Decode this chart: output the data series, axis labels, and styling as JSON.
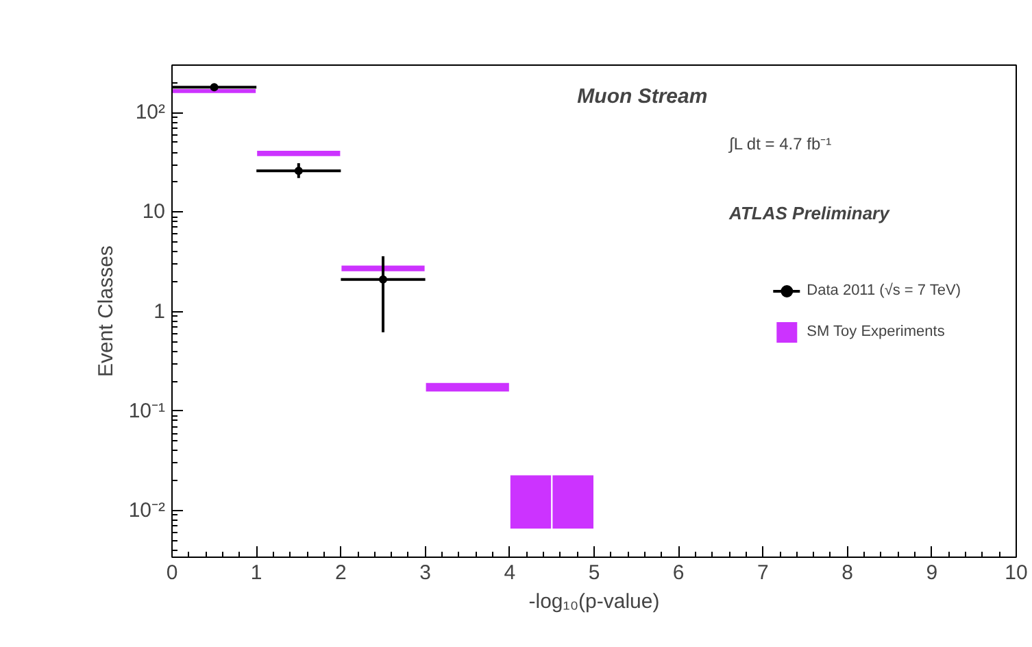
{
  "chart_data": {
    "type": "scatter",
    "xlabel": "-log₁₀(p-value)",
    "ylabel": "Event Classes",
    "annotations": [
      "Muon Stream",
      "∫L dt = 4.7 fb⁻¹",
      "ATLAS Preliminary"
    ],
    "series": [
      {
        "name": "SM Toy Experiments",
        "type": "histogram",
        "color": "#cc33ff",
        "bins": [
          0,
          1,
          2,
          3,
          4,
          4.5,
          5
        ],
        "base": [
          155,
          36,
          2.5,
          0.155,
          0.0065,
          0.0065
        ],
        "values": [
          20,
          6,
          0.45,
          0.04,
          0.0165,
          0.0165
        ]
      },
      {
        "name": "Data 2011 (√s = 7 TeV)",
        "color": "#000000",
        "x": [
          0.5,
          1.5,
          2.5
        ],
        "values": [
          180,
          26,
          2.1
        ],
        "xerrors": [
          0.5,
          0.5,
          0.5
        ],
        "errors": [
          null,
          [
            22,
            31
          ],
          [
            0.62,
            3.6
          ]
        ]
      }
    ],
    "xlim": [
      0,
      10
    ],
    "xticks": [
      0,
      1,
      2,
      3,
      4,
      5,
      6,
      7,
      8,
      9,
      10
    ],
    "ylim": [
      0.0034,
      300
    ],
    "yticks": [
      {
        "value": 0.01,
        "label": "10⁻²"
      },
      {
        "value": 0.1,
        "label": "10⁻¹"
      },
      1,
      10,
      {
        "value": 100,
        "label": "10²"
      }
    ],
    "log": "y",
    "grid": false,
    "legend": "right",
    "marker": "circle"
  }
}
